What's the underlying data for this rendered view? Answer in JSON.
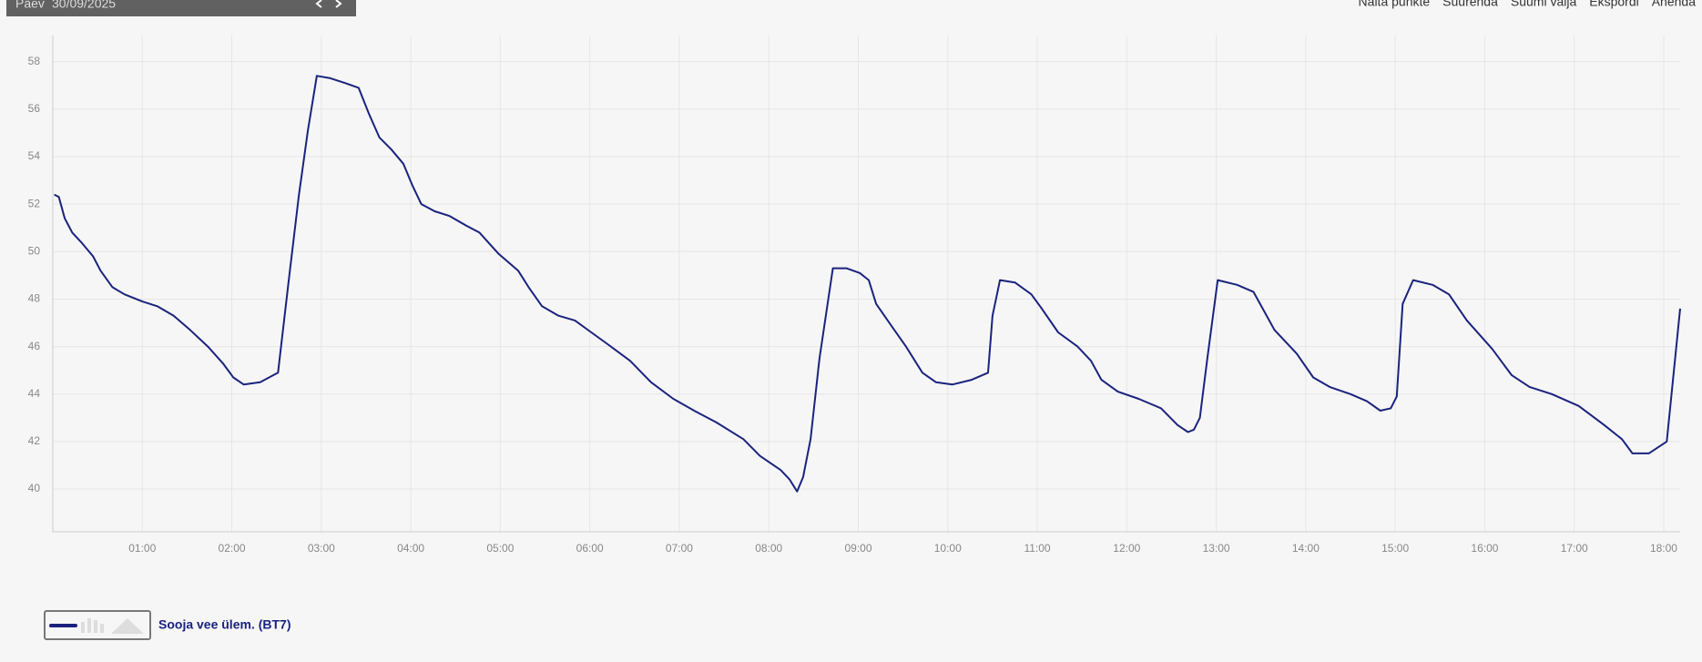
{
  "toolbar": {
    "label": "Päev",
    "date": "30/09/2025",
    "buttons": [
      "Näita punkte",
      "Suurenda",
      "Suumi välja",
      "Ekspordi",
      "Ahenda"
    ]
  },
  "chart_data": {
    "type": "line",
    "x": [
      "00:01",
      "00:04",
      "00:08",
      "00:13",
      "00:19",
      "00:27",
      "00:32",
      "00:40",
      "00:48",
      "01:00",
      "01:10",
      "01:21",
      "01:32",
      "01:44",
      "01:54",
      "02:01",
      "02:08",
      "02:19",
      "02:31",
      "02:38",
      "02:45",
      "02:51",
      "02:57",
      "03:06",
      "03:16",
      "03:25",
      "03:32",
      "03:39",
      "03:47",
      "03:55",
      "04:01",
      "04:07",
      "04:16",
      "04:26",
      "04:37",
      "04:46",
      "04:59",
      "05:12",
      "05:19",
      "05:28",
      "05:39",
      "05:50",
      "06:01",
      "06:12",
      "06:27",
      "06:41",
      "06:56",
      "07:10",
      "07:25",
      "07:43",
      "07:54",
      "08:08",
      "08:14",
      "08:19",
      "08:23",
      "08:28",
      "08:34",
      "08:43",
      "08:52",
      "09:01",
      "09:07",
      "09:12",
      "09:23",
      "09:32",
      "09:43",
      "09:52",
      "10:03",
      "10:16",
      "10:27",
      "10:30",
      "10:35",
      "10:45",
      "10:56",
      "11:03",
      "11:14",
      "11:27",
      "11:36",
      "11:43",
      "11:54",
      "12:08",
      "12:23",
      "12:34",
      "12:41",
      "12:45",
      "12:49",
      "12:54",
      "13:01",
      "13:14",
      "13:25",
      "13:39",
      "13:54",
      "14:05",
      "14:16",
      "14:30",
      "14:41",
      "14:50",
      "14:57",
      "15:01",
      "15:05",
      "15:12",
      "15:25",
      "15:36",
      "15:48",
      "16:05",
      "16:18",
      "16:30",
      "16:45",
      "17:03",
      "17:20",
      "17:32",
      "17:39",
      "17:50",
      "18:02",
      "18:11"
    ],
    "series": [
      {
        "name": "Sooja vee ülem. (BT7)",
        "color": "#1a237e",
        "values": [
          52.4,
          52.3,
          51.4,
          50.8,
          50.4,
          49.8,
          49.2,
          48.5,
          48.2,
          47.9,
          47.7,
          47.3,
          46.7,
          46.0,
          45.3,
          44.7,
          44.4,
          44.5,
          44.9,
          48.7,
          52.4,
          55.1,
          57.4,
          57.3,
          57.1,
          56.9,
          55.8,
          54.8,
          54.3,
          53.7,
          52.8,
          52.0,
          51.7,
          51.5,
          51.1,
          50.8,
          49.9,
          49.2,
          48.5,
          47.7,
          47.3,
          47.1,
          46.6,
          46.1,
          45.4,
          44.5,
          43.8,
          43.3,
          42.8,
          42.1,
          41.4,
          40.8,
          40.4,
          39.9,
          40.5,
          42.1,
          45.5,
          49.3,
          49.3,
          49.1,
          48.8,
          47.8,
          46.8,
          46.0,
          44.9,
          44.5,
          44.4,
          44.6,
          44.9,
          47.3,
          48.8,
          48.7,
          48.2,
          47.6,
          46.6,
          46.0,
          45.4,
          44.6,
          44.1,
          43.8,
          43.4,
          42.7,
          42.4,
          42.5,
          43.0,
          45.5,
          48.8,
          48.6,
          48.3,
          46.7,
          45.7,
          44.7,
          44.3,
          44.0,
          43.7,
          43.3,
          43.4,
          43.9,
          47.8,
          48.8,
          48.6,
          48.2,
          47.1,
          45.9,
          44.8,
          44.3,
          44.0,
          43.5,
          42.7,
          42.1,
          41.5,
          41.5,
          42.0,
          47.6
        ]
      }
    ],
    "xlim": [
      "00:00",
      "18:11"
    ],
    "xticks": [
      "01:00",
      "02:00",
      "03:00",
      "04:00",
      "05:00",
      "06:00",
      "07:00",
      "08:00",
      "09:00",
      "10:00",
      "11:00",
      "12:00",
      "13:00",
      "14:00",
      "15:00",
      "16:00",
      "17:00",
      "18:00"
    ],
    "ylim": [
      38.2,
      59.1
    ],
    "yticks": [
      40,
      42,
      44,
      46,
      48,
      50,
      52,
      54,
      56,
      58
    ],
    "grid": true
  }
}
